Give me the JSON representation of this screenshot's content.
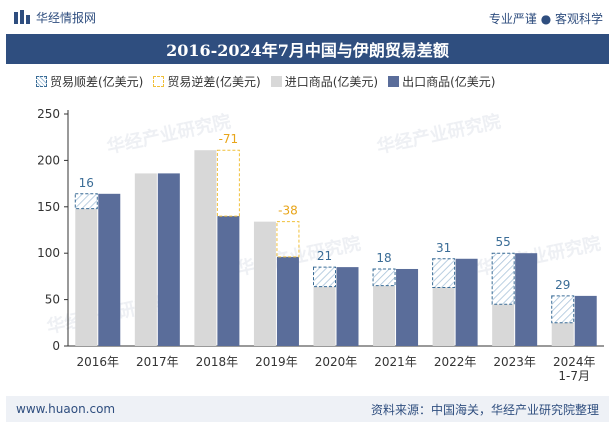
{
  "header": {
    "brand": "华经情报网",
    "tagline": "专业严谨 ● 客观科学"
  },
  "watermark": "华经产业研究院",
  "footer": {
    "url": "www.huaon.com",
    "source": "资料来源：中国海关，华经产业研究院整理"
  },
  "colors": {
    "import": "#d8d8d8",
    "export": "#5a6d9a",
    "surplus": "#3a6c96",
    "deficit": "#f0c03a",
    "title_bg": "#2f4e7f"
  },
  "chart_data": {
    "type": "bar",
    "title": "2016-2024年7月中国与伊朗贸易差额",
    "xlabel": "",
    "ylabel": "",
    "ylim": [
      0,
      250
    ],
    "yticks": [
      0,
      50,
      100,
      150,
      200,
      250
    ],
    "grid": false,
    "legend_position": "top",
    "categories": [
      "2016年",
      "2017年",
      "2018年",
      "2019年",
      "2020年",
      "2021年",
      "2022年",
      "2023年",
      "2024年\n1-7月"
    ],
    "legend": [
      "贸易顺差(亿美元)",
      "贸易逆差(亿美元)",
      "进口商品(亿美元)",
      "出口商品(亿美元)"
    ],
    "series": [
      {
        "name": "进口商品(亿美元)",
        "values": [
          148,
          186,
          211,
          134,
          64,
          65,
          63,
          45,
          25
        ]
      },
      {
        "name": "出口商品(亿美元)",
        "values": [
          164,
          186,
          140,
          96,
          85,
          83,
          94,
          100,
          54
        ]
      }
    ],
    "balance": [
      {
        "label": "16",
        "value": 16,
        "kind": "surplus"
      },
      {
        "label": "",
        "value": 0,
        "kind": "none"
      },
      {
        "label": "-71",
        "value": -71,
        "kind": "deficit"
      },
      {
        "label": "-38",
        "value": -38,
        "kind": "deficit"
      },
      {
        "label": "21",
        "value": 21,
        "kind": "surplus"
      },
      {
        "label": "18",
        "value": 18,
        "kind": "surplus"
      },
      {
        "label": "31",
        "value": 31,
        "kind": "surplus"
      },
      {
        "label": "55",
        "value": 55,
        "kind": "surplus"
      },
      {
        "label": "29",
        "value": 29,
        "kind": "surplus"
      }
    ]
  }
}
